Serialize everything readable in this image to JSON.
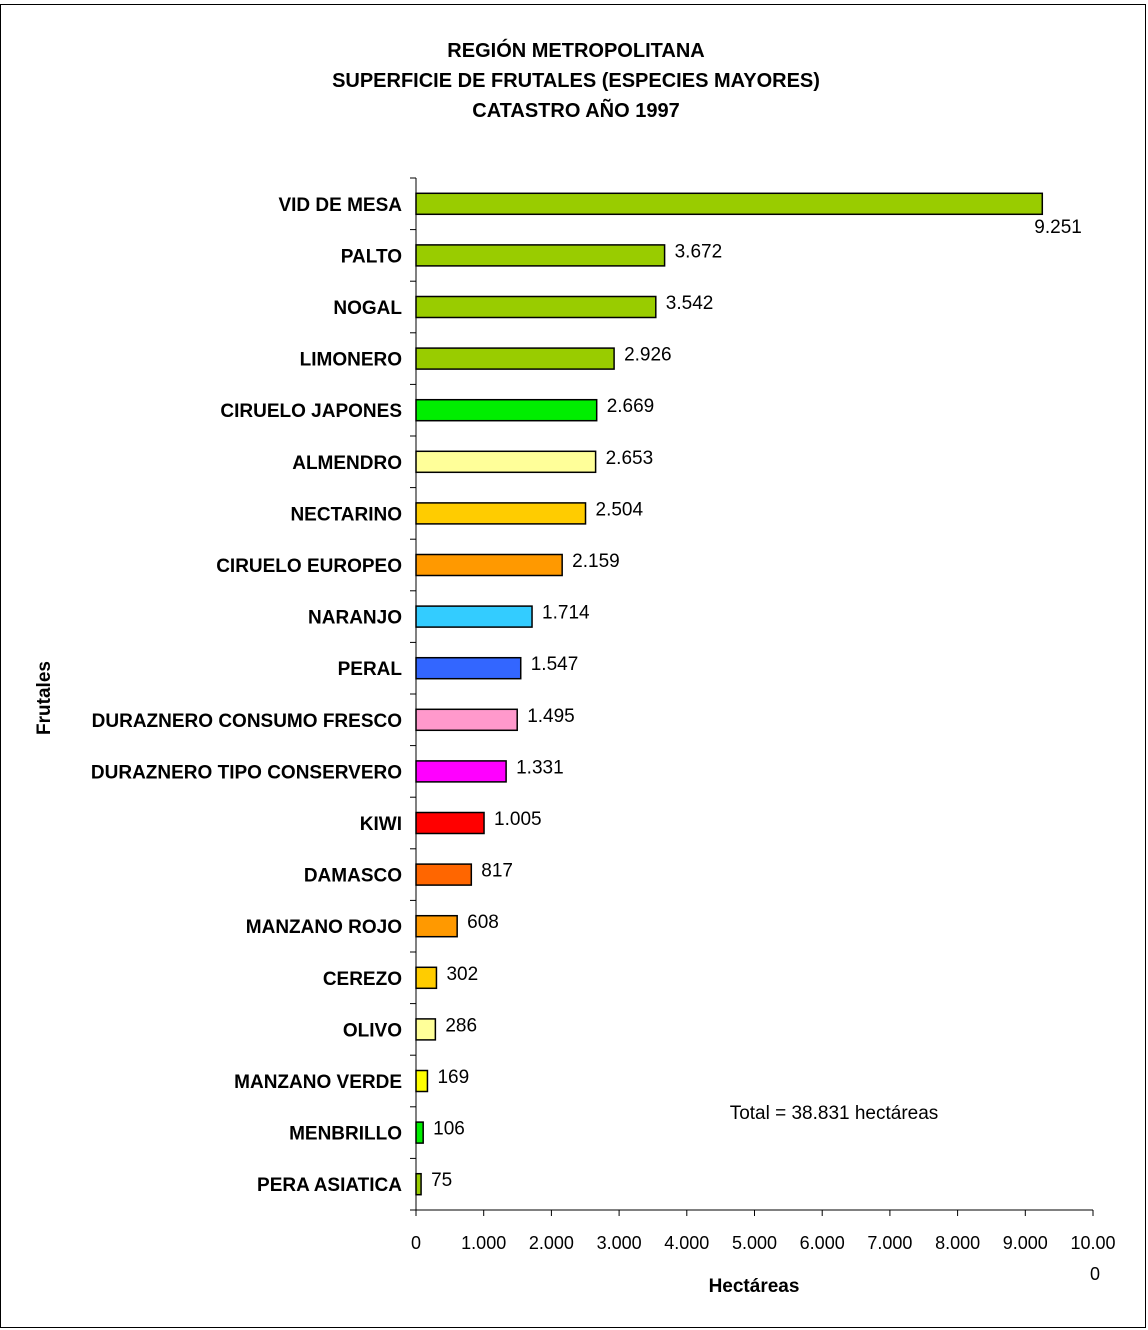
{
  "chart_data": {
    "type": "bar",
    "orientation": "horizontal",
    "title": [
      "REGIÓN METROPOLITANA",
      "SUPERFICIE DE FRUTALES (ESPECIES MAYORES)",
      "CATASTRO AÑO 1997"
    ],
    "xlabel": "Hectáreas",
    "ylabel": "Frutales",
    "xlim": [
      0,
      10000
    ],
    "xticks": [
      "0",
      "1.000",
      "2.000",
      "3.000",
      "4.000",
      "5.000",
      "6.000",
      "7.000",
      "8.000",
      "9.000",
      "10.00",
      "0"
    ],
    "grid": false,
    "annotation": "Total = 38.831 hectáreas",
    "categories": [
      "VID DE MESA",
      "PALTO",
      "NOGAL",
      "LIMONERO",
      "CIRUELO JAPONES",
      "ALMENDRO",
      "NECTARINO",
      "CIRUELO EUROPEO",
      "NARANJO",
      "PERAL",
      "DURAZNERO CONSUMO FRESCO",
      "DURAZNERO TIPO CONSERVERO",
      "KIWI",
      "DAMASCO",
      "MANZANO ROJO",
      "CEREZO",
      "OLIVO",
      "MANZANO VERDE",
      "MENBRILLO",
      "PERA ASIATICA"
    ],
    "values": [
      9251,
      3672,
      3542,
      2926,
      2669,
      2653,
      2504,
      2159,
      1714,
      1547,
      1495,
      1331,
      1005,
      817,
      608,
      302,
      286,
      169,
      106,
      75
    ],
    "value_labels": [
      "9.251",
      "3.672",
      "3.542",
      "2.926",
      "2.669",
      "2.653",
      "2.504",
      "2.159",
      "1.714",
      "1.547",
      "1.495",
      "1.331",
      "1.005",
      "817",
      "608",
      "302",
      "286",
      "169",
      "106",
      "75"
    ],
    "colors": [
      "#99cc00",
      "#99cc00",
      "#99cc00",
      "#99cc00",
      "#00ee00",
      "#ffff99",
      "#ffcc00",
      "#ff9900",
      "#33ccff",
      "#3366ff",
      "#ff99cc",
      "#ff00ff",
      "#ff0000",
      "#ff6600",
      "#ff9900",
      "#ffcc00",
      "#ffff99",
      "#ffff00",
      "#00ee00",
      "#99cc00"
    ]
  }
}
